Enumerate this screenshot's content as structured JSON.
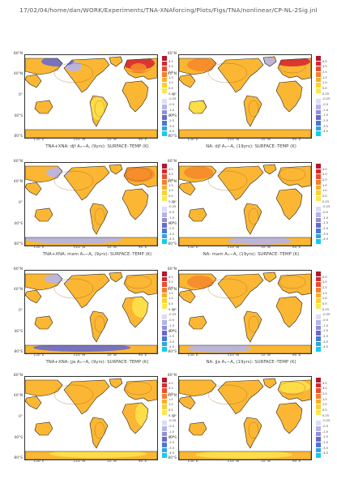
{
  "header": "17/02/04/home/dan/WORK/Experiments/TNA-XNAforcing/Plots/Figs/TNA/nonlinear/CP-NL-2Sig.jnl",
  "axes": {
    "lat_labels": [
      "80°N",
      "40°N",
      "0°",
      "40°S",
      "80°S"
    ],
    "lon_labels": [
      "150°E",
      "110°W",
      "10°W",
      "90°E"
    ]
  },
  "colorbar": {
    "tick_labels": [
      "4.5",
      "3.5",
      "2.5",
      "1.5",
      "1.0",
      "0.5",
      "0.25",
      "-0.25",
      "-0.5",
      "-1.0",
      "-1.5",
      "-2.5",
      "-3.5",
      "-4.5"
    ],
    "colors": [
      "#b5172e",
      "#d9272f",
      "#ef4b2c",
      "#f97d2a",
      "#fbac28",
      "#fcd12c",
      "#fbe74e",
      "#ffffff",
      "#dcdcf5",
      "#b5b5ea",
      "#8f8fdc",
      "#6a6acb",
      "#4a78d8",
      "#2aa6e6",
      "#10cdf1"
    ]
  },
  "colors": {
    "ocean": "#ffffff",
    "warm": "#fbb733",
    "warm_light": "#fde14a",
    "warm_strong": "#f48a2a",
    "hot": "#d9272f",
    "cool": "#b5b5ea",
    "cool_strong": "#6a6acb",
    "outline": "#222222"
  },
  "panels": [
    {
      "caption": "TNA+XNA: djf A_x-A_c (9yrs): SURFACE_TEMP (K)",
      "caption_display": "TNA+XNA: djf Aₓ−A꜀ (9yrs): SURFACE₋TEMP (K)"
    },
    {
      "caption": "NA: djf A_x-A_c (19yrs): SURFACE_TEMP (K)",
      "caption_display": "NA: djf Aₓ−A꜀ (19yrs): SURFACE₋TEMP (K)"
    },
    {
      "caption": "TNA+XNA: mam A_x-A_c (9yrs): SURFACE_TEMP (K)",
      "caption_display": "TNA+XNA: mam Aₓ−A꜀ (9yrs): SURFACE₋TEMP (K)"
    },
    {
      "caption": "NA: mam A_x-A_c (19yrs): SURFACE_TEMP (K)",
      "caption_display": "NA: mam Aₓ−A꜀ (19yrs): SURFACE₋TEMP (K)"
    },
    {
      "caption": "TNA+XNA: jja A_x-A_c (9yrs): SURFACE_TEMP (K)",
      "caption_display": "TNA+XNA: jja Aₓ−A꜀ (9yrs): SURFACE₋TEMP (K)"
    },
    {
      "caption": "NA: jja A_x-A_c (19yrs): SURFACE_TEMP (K)",
      "caption_display": "NA: jja Aₓ−A꜀ (19yrs): SURFACE₋TEMP (K)"
    },
    {
      "caption": "",
      "caption_display": ""
    },
    {
      "caption": "",
      "caption_display": ""
    }
  ]
}
